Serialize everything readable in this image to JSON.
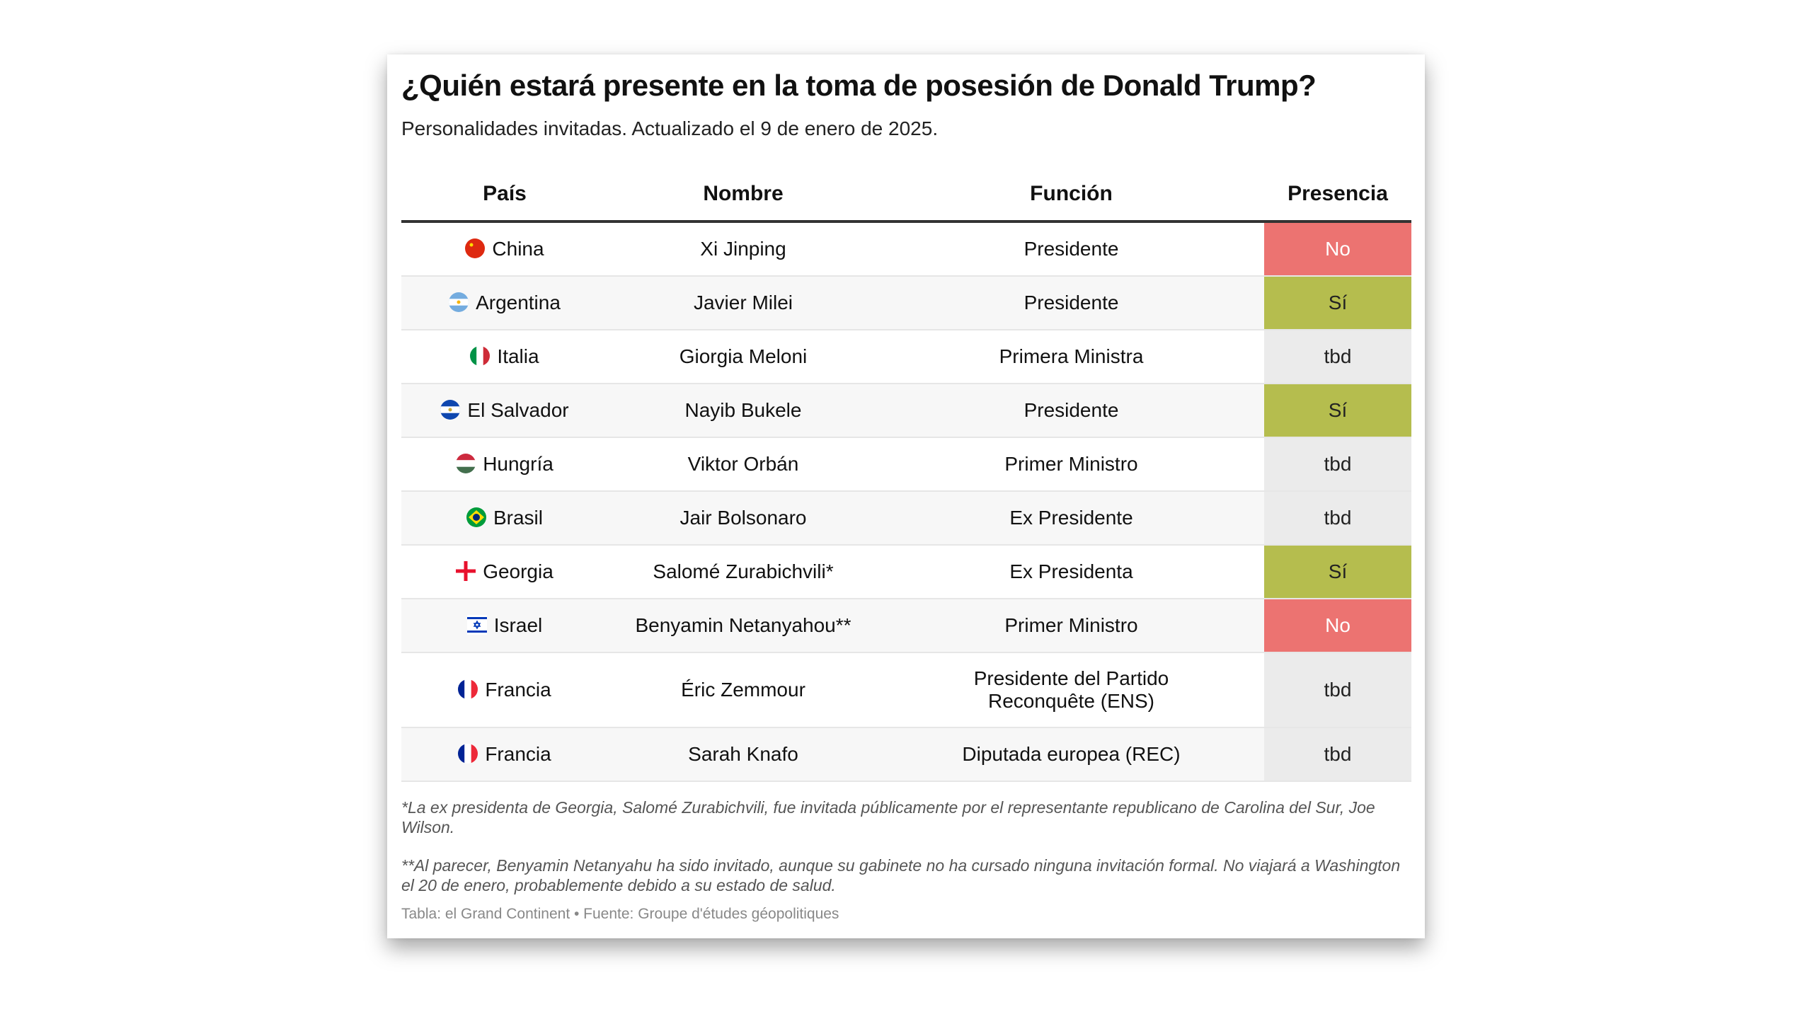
{
  "title": "¿Quién estará presente en la toma de posesión de Donald Trump?",
  "subtitle": "Personalidades invitadas. Actualizado el 9 de enero de 2025.",
  "columns": [
    "País",
    "Nombre",
    "Función",
    "Presencia"
  ],
  "colors": {
    "no": "#ec7371",
    "si": "#b5bd4e",
    "tbd": "#ebebeb"
  },
  "rows": [
    {
      "flag": "china-flag-icon",
      "country": "China",
      "name": "Xi Jinping",
      "role": "Presidente",
      "presence": "No",
      "status": "no"
    },
    {
      "flag": "argentina-flag-icon",
      "country": "Argentina",
      "name": "Javier Milei",
      "role": "Presidente",
      "presence": "Sí",
      "status": "si"
    },
    {
      "flag": "italy-flag-icon",
      "country": "Italia",
      "name": "Giorgia Meloni",
      "role": "Primera Ministra",
      "presence": "tbd",
      "status": "tbd"
    },
    {
      "flag": "el-salvador-flag-icon",
      "country": "El Salvador",
      "name": "Nayib Bukele",
      "role": "Presidente",
      "presence": "Sí",
      "status": "si"
    },
    {
      "flag": "hungary-flag-icon",
      "country": "Hungría",
      "name": "Viktor Orbán",
      "role": "Primer Ministro",
      "presence": "tbd",
      "status": "tbd"
    },
    {
      "flag": "brazil-flag-icon",
      "country": "Brasil",
      "name": "Jair Bolsonaro",
      "role": "Ex Presidente",
      "presence": "tbd",
      "status": "tbd"
    },
    {
      "flag": "georgia-flag-icon",
      "country": "Georgia",
      "name": "Salomé Zurabichvili*",
      "role": "Ex Presidenta",
      "presence": "Sí",
      "status": "si"
    },
    {
      "flag": "israel-flag-icon",
      "country": "Israel",
      "name": "Benyamin Netanyahou**",
      "role": "Primer Ministro",
      "presence": "No",
      "status": "no"
    },
    {
      "flag": "france-flag-icon",
      "country": "Francia",
      "name": "Éric Zemmour",
      "role": "Presidente del Partido Reconquête (ENS)",
      "presence": "tbd",
      "status": "tbd"
    },
    {
      "flag": "france-flag-icon",
      "country": "Francia",
      "name": "Sarah Knafo",
      "role": "Diputada europea (REC)",
      "presence": "tbd",
      "status": "tbd"
    }
  ],
  "notes": [
    "*La ex presidenta de Georgia, Salomé Zurabichvili, fue invitada públicamente por el representante republicano de Carolina del Sur, Joe Wilson.",
    "**Al parecer, Benyamin Netanyahu ha sido invitado, aunque su gabinete no ha cursado ninguna invitación formal. No viajará a Washington el 20 de enero, probablemente debido a su estado de salud."
  ],
  "source": "Tabla: el Grand Continent  • Fuente: Groupe d'études géopolitiques"
}
